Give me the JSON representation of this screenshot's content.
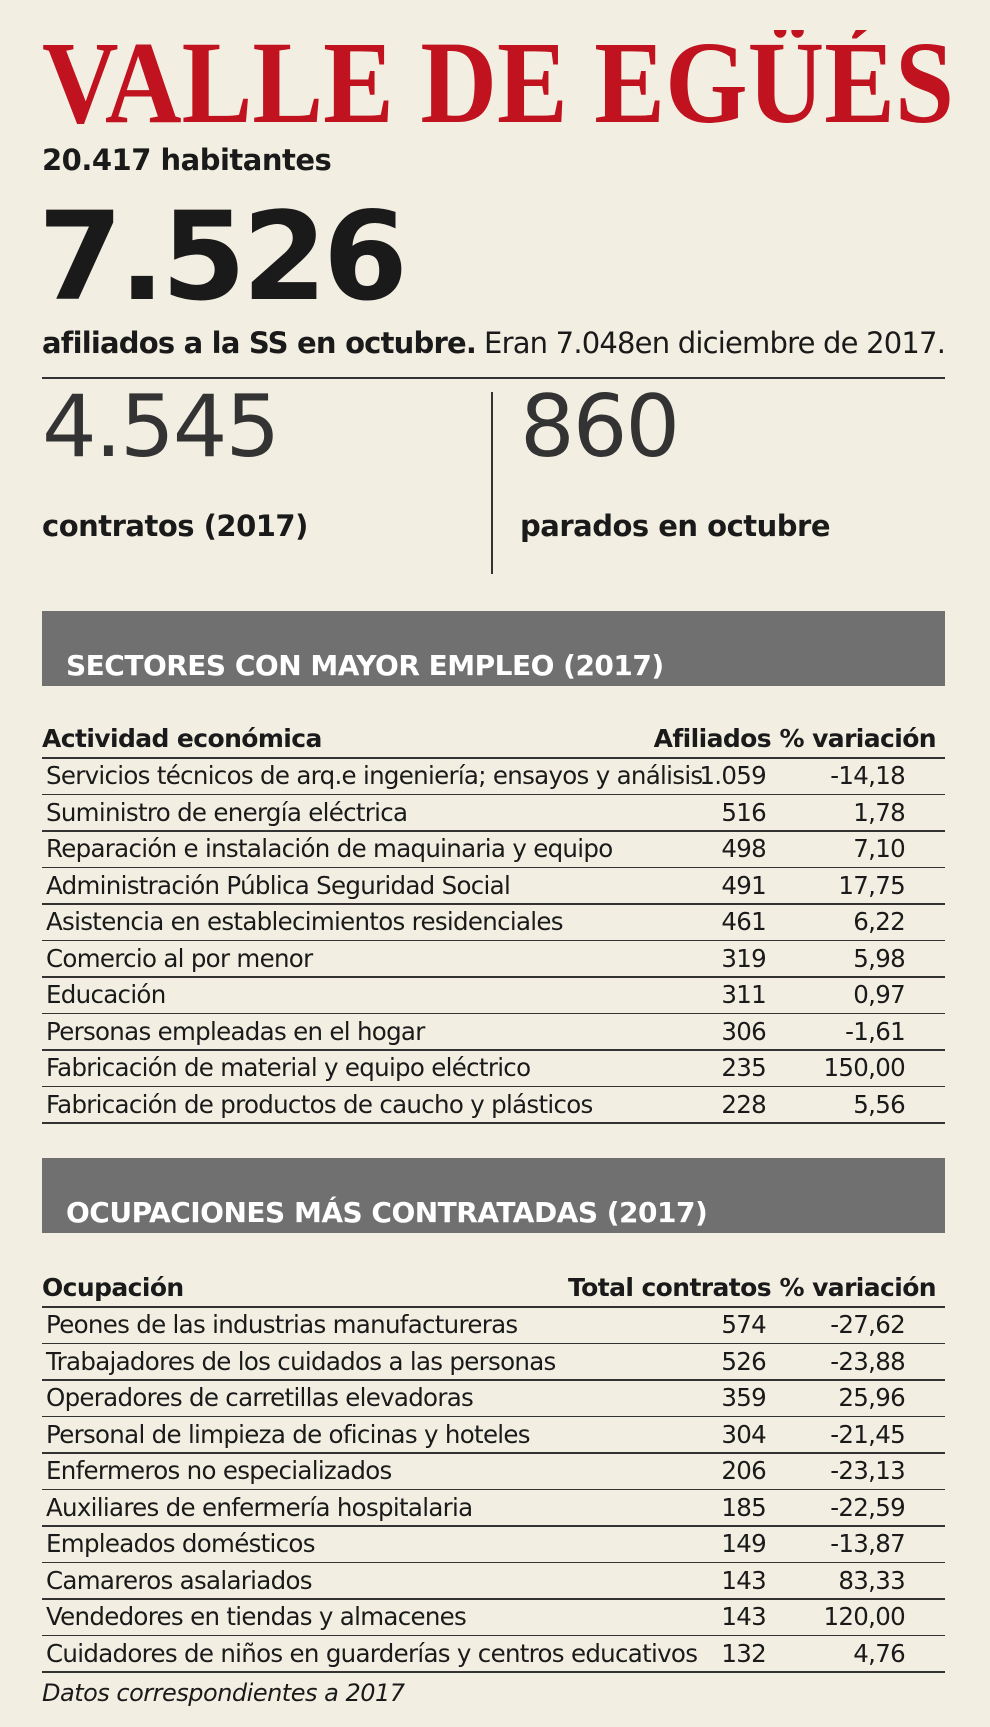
{
  "header": {
    "title": "VALLE DE EGÜÉS",
    "population": "20.417 habitantes",
    "headline_number": "7.526",
    "headline_bold": "afiliados a la SS en octubre.",
    "headline_rest": "Eran 7.048en diciembre de 2017."
  },
  "stats": [
    {
      "value": "4.545",
      "label": "contratos (2017)"
    },
    {
      "value": "860",
      "label": "parados en octubre"
    }
  ],
  "tables": [
    {
      "title": "SECTORES CON MAYOR EMPLEO (2017)",
      "columns": [
        "Actividad económica",
        "Afiliados",
        "% variación"
      ],
      "rows": [
        [
          "Servicios técnicos de arq.e ingeniería; ensayos y análisis",
          "1.059",
          "-14,18"
        ],
        [
          "Suministro de energía eléctrica",
          "516",
          "1,78"
        ],
        [
          "Reparación e instalación de maquinaria y equipo",
          "498",
          "7,10"
        ],
        [
          "Administración Pública Seguridad Social",
          "491",
          "17,75"
        ],
        [
          "Asistencia en establecimientos residenciales",
          "461",
          "6,22"
        ],
        [
          "Comercio al por menor",
          "319",
          "5,98"
        ],
        [
          "Educación",
          "311",
          "0,97"
        ],
        [
          "Personas empleadas en el hogar",
          "306",
          "-1,61"
        ],
        [
          "Fabricación de material y equipo eléctrico",
          "235",
          "150,00"
        ],
        [
          "Fabricación de productos de caucho y plásticos",
          "228",
          "5,56"
        ]
      ]
    },
    {
      "title": "OCUPACIONES MÁS CONTRATADAS (2017)",
      "columns": [
        "Ocupación",
        "Total contratos",
        "% variación"
      ],
      "rows": [
        [
          "Peones de las industrias manufactureras",
          "574",
          "-27,62"
        ],
        [
          "Trabajadores de los cuidados a las personas",
          "526",
          "-23,88"
        ],
        [
          "Operadores de carretillas elevadoras",
          "359",
          "25,96"
        ],
        [
          "Personal de limpieza de oficinas y hoteles",
          "304",
          "-21,45"
        ],
        [
          "Enfermeros no especializados",
          "206",
          "-23,13"
        ],
        [
          "Auxiliares de enfermería hospitalaria",
          "185",
          "-22,59"
        ],
        [
          "Empleados domésticos",
          "149",
          "-13,87"
        ],
        [
          "Camareros asalariados",
          "143",
          "83,33"
        ],
        [
          "Vendedores en tiendas y almacenes",
          "143",
          "120,00"
        ],
        [
          "Cuidadores de niños en guarderías y centros educativos",
          "132",
          "4,76"
        ]
      ]
    }
  ],
  "footnote": "Datos correspondientes a 2017"
}
